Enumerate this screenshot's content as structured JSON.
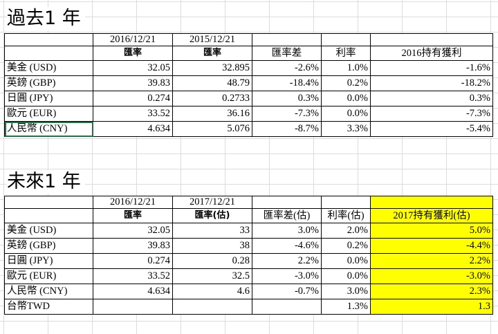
{
  "past": {
    "title": "過去1 年",
    "header": {
      "date_a": "2016/12/21",
      "date_b": "2015/12/21",
      "rate_a": "匯率",
      "rate_b": "匯率",
      "diff": "匯率差",
      "interest": "利率",
      "profit": "2016持有獲利"
    },
    "rows": [
      {
        "currency": "美金 (USD)",
        "rate_a": "32.05",
        "rate_b": "32.895",
        "diff": "-2.6%",
        "interest": "1.0%",
        "profit": "-1.6%"
      },
      {
        "currency": "英鎊 (GBP)",
        "rate_a": "39.83",
        "rate_b": "48.79",
        "diff": "-18.4%",
        "interest": "0.2%",
        "profit": "-18.2%"
      },
      {
        "currency": "日圓 (JPY)",
        "rate_a": "0.274",
        "rate_b": "0.2733",
        "diff": "0.3%",
        "interest": "0.0%",
        "profit": "0.3%"
      },
      {
        "currency": "歐元 (EUR)",
        "rate_a": "33.52",
        "rate_b": "36.16",
        "diff": "-7.3%",
        "interest": "0.0%",
        "profit": "-7.3%"
      },
      {
        "currency": "人民幣 (CNY)",
        "rate_a": "4.634",
        "rate_b": "5.076",
        "diff": "-8.7%",
        "interest": "3.3%",
        "profit": "-5.4%"
      }
    ]
  },
  "future": {
    "title": "未來1 年",
    "header": {
      "date_a": "2016/12/21",
      "date_b": "2017/12/21",
      "rate_a": "匯率",
      "rate_b": "匯率(估)",
      "diff": "匯率差(估)",
      "interest": "利率(估)",
      "profit": "2017持有獲利(估)"
    },
    "rows": [
      {
        "currency": "美金 (USD)",
        "rate_a": "32.05",
        "rate_b": "33",
        "diff": "3.0%",
        "interest": "2.0%",
        "profit": "5.0%"
      },
      {
        "currency": "英鎊 (GBP)",
        "rate_a": "39.83",
        "rate_b": "38",
        "diff": "-4.6%",
        "interest": "0.2%",
        "profit": "-4.4%"
      },
      {
        "currency": "日圓 (JPY)",
        "rate_a": "0.274",
        "rate_b": "0.28",
        "diff": "2.2%",
        "interest": "0.0%",
        "profit": "2.2%"
      },
      {
        "currency": "歐元 (EUR)",
        "rate_a": "33.52",
        "rate_b": "32.5",
        "diff": "-3.0%",
        "interest": "0.0%",
        "profit": "-3.0%"
      },
      {
        "currency": "人民幣 (CNY)",
        "rate_a": "4.634",
        "rate_b": "4.6",
        "diff": "-0.7%",
        "interest": "3.0%",
        "profit": "2.3%"
      }
    ],
    "twd": {
      "currency": "台幣TWD",
      "interest": "1.3%",
      "profit": "1.3"
    }
  },
  "colors": {
    "highlight": "#ffff00",
    "selection": "#217346",
    "gridline": "#dcdcdc"
  }
}
